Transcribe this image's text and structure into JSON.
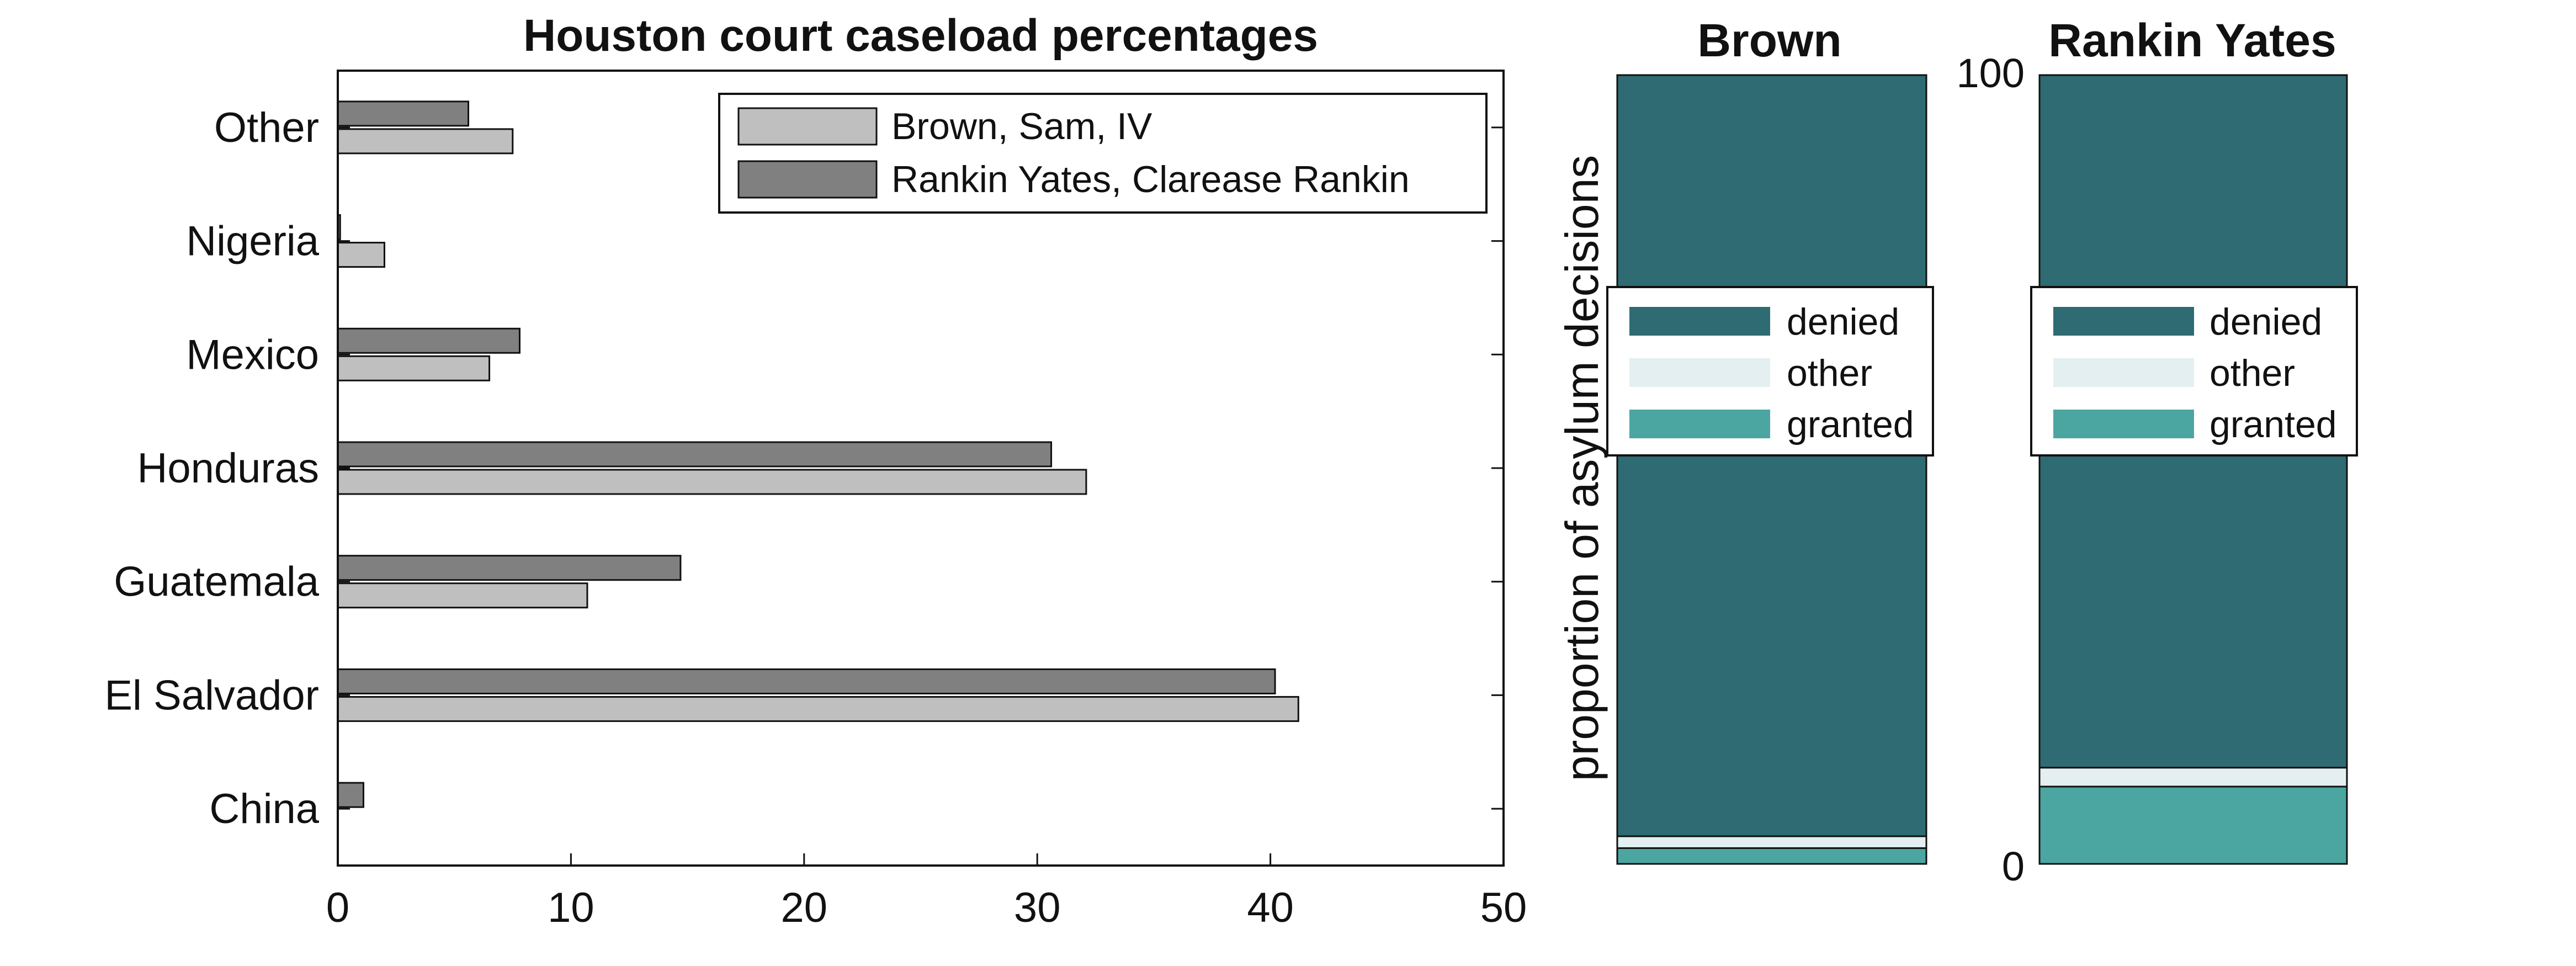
{
  "chart_data": [
    {
      "type": "bar",
      "orientation": "horizontal",
      "title": "Houston court caseload percentages",
      "xlabel": "",
      "ylabel": "",
      "categories": [
        "China",
        "El Salvador",
        "Guatemala",
        "Honduras",
        "Mexico",
        "Nigeria",
        "Other"
      ],
      "series": [
        {
          "name": "Brown, Sam, IV",
          "color": "#bfbfbf",
          "values": [
            0,
            41.2,
            10.7,
            32.1,
            6.5,
            2.0,
            7.5
          ]
        },
        {
          "name": "Rankin Yates, Clarease Rankin",
          "color": "#808080",
          "values": [
            1.1,
            40.2,
            14.7,
            30.6,
            7.8,
            0.1,
            5.6
          ]
        }
      ],
      "xlim": [
        0,
        50
      ],
      "xticks": [
        "0",
        "10",
        "20",
        "30",
        "40",
        "50"
      ],
      "legend": {
        "position": "top-right",
        "entries": [
          "Brown, Sam, IV",
          "Rankin Yates, Clarease Rankin"
        ]
      },
      "grid": false
    },
    {
      "type": "bar",
      "stacked": true,
      "title": "Brown",
      "ylabel": "proportion of asylum decisions",
      "ylim": [
        0,
        100
      ],
      "yticks": [],
      "segments": [
        {
          "name": "granted",
          "value": 2.0,
          "color": "#4ba6a1"
        },
        {
          "name": "other",
          "value": 1.5,
          "color": "#e3eff0"
        },
        {
          "name": "denied",
          "value": 96.5,
          "color": "#2e6b72"
        }
      ],
      "legend": {
        "position": "upper-middle",
        "entries": [
          "denied",
          "other",
          "granted"
        ]
      }
    },
    {
      "type": "bar",
      "stacked": true,
      "title": "Rankin Yates",
      "ylabel": "",
      "ylim": [
        0,
        100
      ],
      "yticks": [
        "0",
        "100"
      ],
      "segments": [
        {
          "name": "granted",
          "value": 9.8,
          "color": "#4ba6a1"
        },
        {
          "name": "other",
          "value": 2.4,
          "color": "#e3eff0"
        },
        {
          "name": "denied",
          "value": 87.8,
          "color": "#2e6b72"
        }
      ],
      "legend": {
        "position": "upper-middle",
        "entries": [
          "denied",
          "other",
          "granted"
        ]
      }
    }
  ]
}
